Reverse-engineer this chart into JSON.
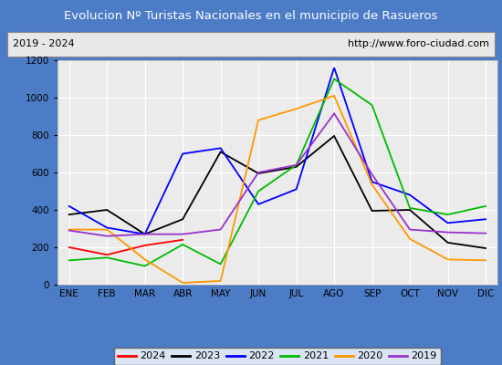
{
  "title": "Evolucion Nº Turistas Nacionales en el municipio de Rasueros",
  "subtitle_left": "2019 - 2024",
  "subtitle_right": "http://www.foro-ciudad.com",
  "title_bg_color": "#4d7cc7",
  "title_text_color": "#ffffff",
  "subtitle_bg_color": "#e8e8e8",
  "subtitle_text_color": "#000000",
  "plot_bg_color": "#ebebeb",
  "months": [
    "ENE",
    "FEB",
    "MAR",
    "ABR",
    "MAY",
    "JUN",
    "JUL",
    "AGO",
    "SEP",
    "OCT",
    "NOV",
    "DIC"
  ],
  "series": {
    "2024": {
      "color": "#ff0000",
      "data": [
        200,
        160,
        210,
        240,
        null,
        null,
        null,
        null,
        null,
        null,
        null,
        null
      ]
    },
    "2023": {
      "color": "#000000",
      "data": [
        375,
        400,
        270,
        350,
        710,
        595,
        630,
        795,
        395,
        400,
        225,
        195
      ]
    },
    "2022": {
      "color": "#0000ff",
      "data": [
        420,
        305,
        270,
        700,
        730,
        430,
        510,
        1160,
        550,
        480,
        330,
        350
      ]
    },
    "2021": {
      "color": "#00bb00",
      "data": [
        130,
        145,
        100,
        215,
        110,
        500,
        640,
        1100,
        960,
        410,
        375,
        420
      ]
    },
    "2020": {
      "color": "#ff9900",
      "data": [
        295,
        295,
        135,
        10,
        20,
        880,
        940,
        1010,
        535,
        245,
        135,
        130
      ]
    },
    "2019": {
      "color": "#9933cc",
      "data": [
        290,
        260,
        270,
        270,
        295,
        600,
        640,
        915,
        590,
        295,
        280,
        275
      ]
    }
  },
  "ylim": [
    0,
    1200
  ],
  "yticks": [
    0,
    200,
    400,
    600,
    800,
    1000,
    1200
  ],
  "legend_order": [
    "2024",
    "2023",
    "2022",
    "2021",
    "2020",
    "2019"
  ],
  "outer_border_color": "#4d7cc7",
  "grid_color": "#ffffff",
  "figure_width": 5.5,
  "figure_height": 4.0,
  "figure_dpi": 100
}
